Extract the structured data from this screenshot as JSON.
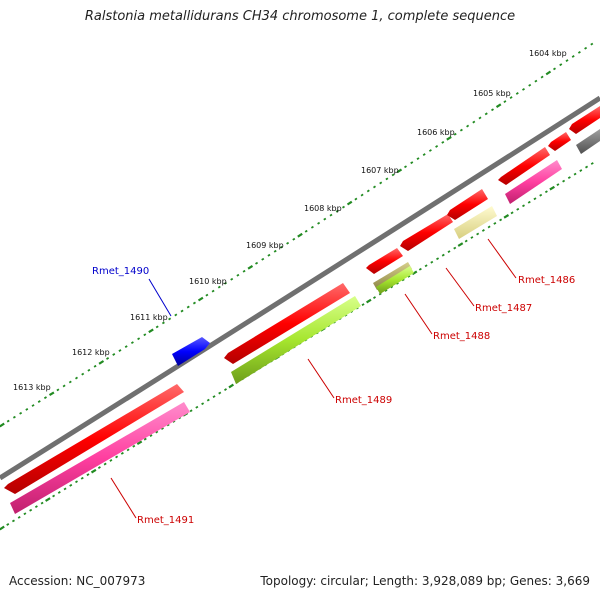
{
  "title": "Ralstonia metallidurans CH34 chromosome 1, complete sequence",
  "footer": {
    "accession": "Accession: NC_007973",
    "stats": "Topology: circular; Length: 3,928,089 bp; Genes: 3,669"
  },
  "scale": {
    "ticks": [
      "1604 kbp",
      "1605 kbp",
      "1606 kbp",
      "1607 kbp",
      "1608 kbp",
      "1609 kbp",
      "1610 kbp",
      "1611 kbp",
      "1612 kbp",
      "1613 kbp"
    ]
  },
  "genes": [
    {
      "name": "Rmet_1486",
      "color": "#cc0000"
    },
    {
      "name": "Rmet_1487",
      "color": "#cc0000"
    },
    {
      "name": "Rmet_1488",
      "color": "#cc0000"
    },
    {
      "name": "Rmet_1489",
      "color": "#cc0000"
    },
    {
      "name": "Rmet_1490",
      "color": "#0000cc"
    },
    {
      "name": "Rmet_1491",
      "color": "#cc0000"
    }
  ],
  "colors": {
    "backbone": "#808080",
    "forward_cds": "#ff0000",
    "reverse_cds": "#0000ff",
    "tick": "#228b22",
    "feature_magenta": "#ff3fa0",
    "feature_lime": "#a6e62e",
    "feature_khaki": "#eee8aa",
    "feature_dark": "#707070"
  }
}
